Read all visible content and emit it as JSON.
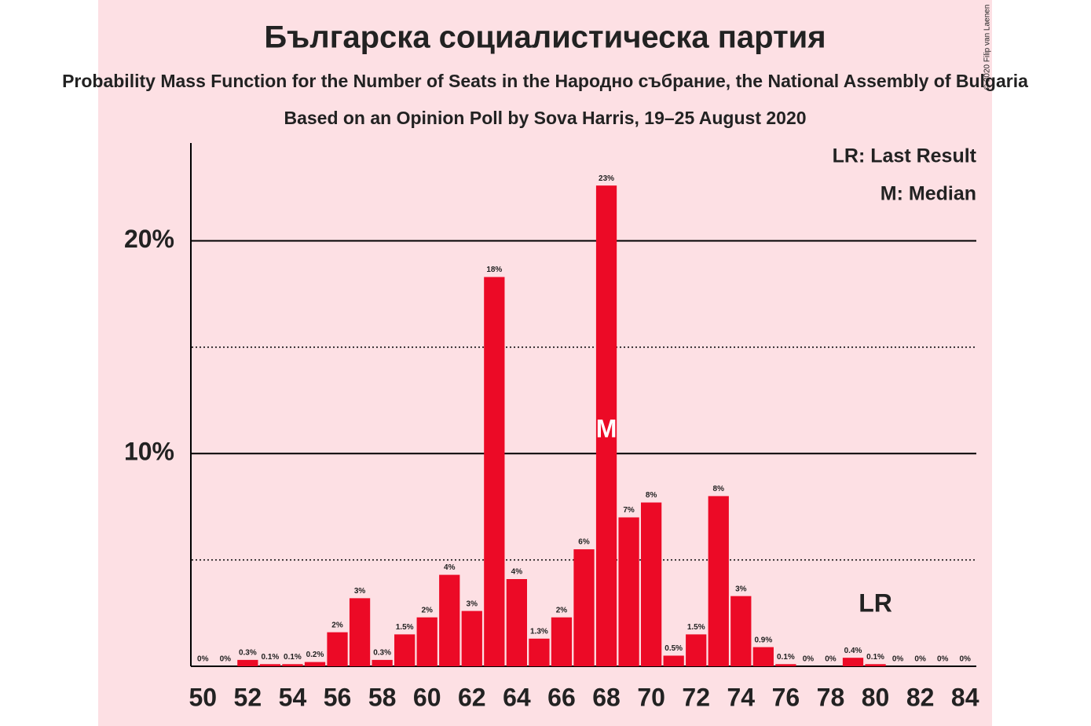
{
  "chart_data": {
    "type": "bar",
    "title": "Българска социалистическа партия",
    "subtitle": "Probability Mass Function for the Number of Seats in the Народно събрание, the National Assembly of Bulgaria",
    "source": "Based on an Opinion Poll by Sova Harris, 19–25 August 2020",
    "copyright": "© 2020 Filip van Laenen",
    "legend": [
      "LR: Last Result",
      "M: Median"
    ],
    "x": [
      50,
      51,
      52,
      53,
      54,
      55,
      56,
      57,
      58,
      59,
      60,
      61,
      62,
      63,
      64,
      65,
      66,
      67,
      68,
      69,
      70,
      71,
      72,
      73,
      74,
      75,
      76,
      77,
      78,
      79,
      80,
      81,
      82,
      83,
      84
    ],
    "values": [
      0,
      0,
      0.3,
      0.1,
      0.1,
      0.2,
      1.6,
      3.2,
      0.3,
      1.5,
      2.3,
      4.3,
      2.6,
      18.3,
      4.1,
      1.3,
      2.3,
      5.5,
      22.6,
      7.0,
      7.7,
      0.5,
      1.5,
      8.0,
      3.3,
      0.9,
      0.1,
      0,
      0,
      0.4,
      0.1,
      0,
      0,
      0,
      0
    ],
    "value_labels": [
      "0%",
      "0%",
      "0.3%",
      "0.1%",
      "0.1%",
      "0.2%",
      "2%",
      "3%",
      "0.3%",
      "1.5%",
      "2%",
      "4%",
      "3%",
      "18%",
      "4%",
      "1.3%",
      "2%",
      "6%",
      "23%",
      "7%",
      "8%",
      "0.5%",
      "1.5%",
      "8%",
      "3%",
      "0.9%",
      "0.1%",
      "0%",
      "0%",
      "0.4%",
      "0.1%",
      "0%",
      "0%",
      "0%",
      "0%"
    ],
    "color": "#ec0a26",
    "xlim": [
      49.5,
      84.5
    ],
    "xticks": [
      50,
      52,
      54,
      56,
      58,
      60,
      62,
      64,
      66,
      68,
      70,
      72,
      74,
      76,
      78,
      80,
      82,
      84
    ],
    "ylim": [
      0,
      24.6
    ],
    "yticks": [
      {
        "value": 10,
        "label": "10%"
      },
      {
        "value": 20,
        "label": "20%"
      }
    ],
    "minor_yticks": [
      5,
      15
    ],
    "annotations": [
      {
        "text": "M",
        "x": 68
      },
      {
        "text": "LR",
        "x": 80
      }
    ]
  }
}
